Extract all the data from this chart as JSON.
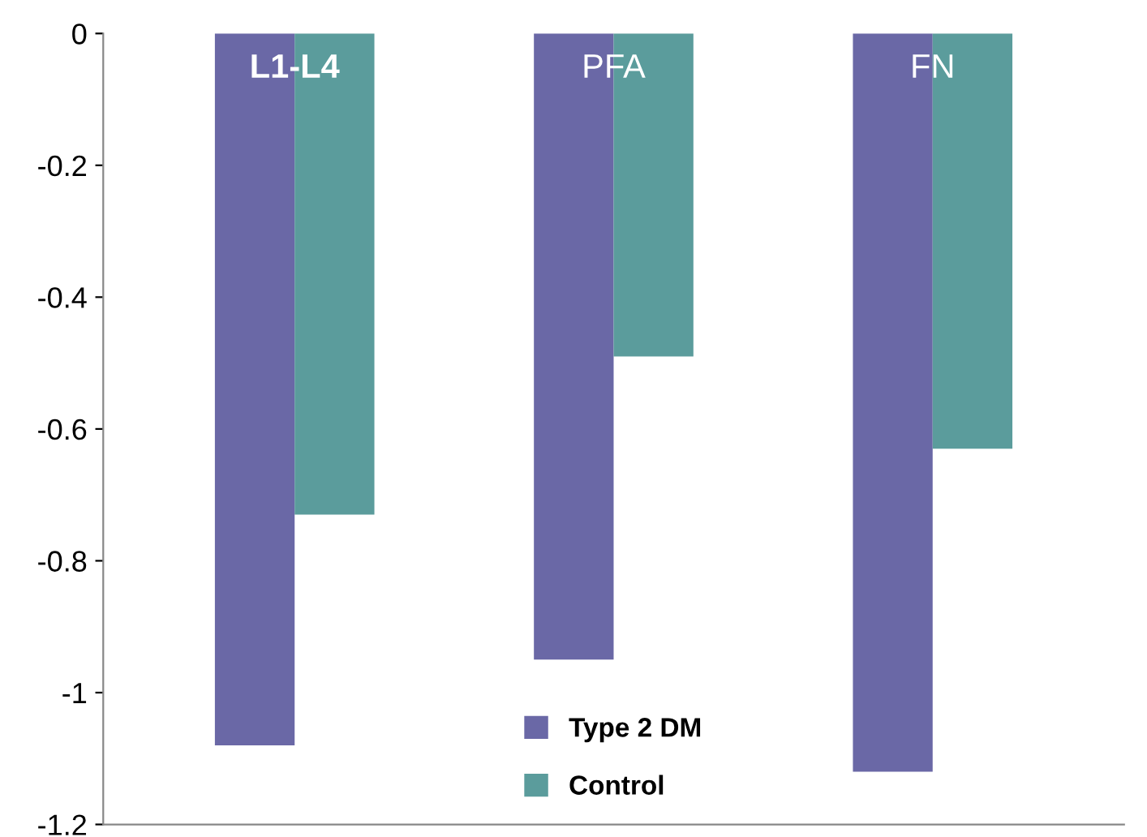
{
  "chart_data": {
    "type": "bar",
    "categories": [
      "L1-L4",
      "PFA",
      "FN"
    ],
    "series": [
      {
        "name": "Type 2 DM",
        "color": "#6a68a6",
        "values": [
          -1.08,
          -0.95,
          -1.12
        ]
      },
      {
        "name": "Control",
        "color": "#5b9c9c",
        "values": [
          -0.73,
          -0.49,
          -0.63
        ]
      }
    ],
    "ylim": [
      -1.2,
      0
    ],
    "yticks": [
      0,
      -0.2,
      -0.4,
      -0.6,
      -0.8,
      -1,
      -1.2
    ],
    "legend": "bottom",
    "grid": false
  }
}
